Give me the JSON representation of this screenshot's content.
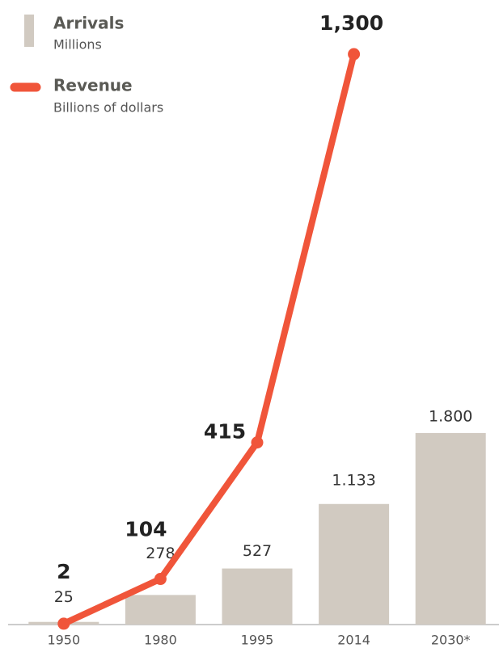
{
  "chart_data": {
    "type": "bar-line",
    "categories": [
      "1950",
      "1980",
      "1995",
      "2014",
      "2030*"
    ],
    "series": [
      {
        "name": "Arrivals",
        "unit": "Millions",
        "color": "#d1cac1",
        "type": "bar",
        "values": [
          25,
          278,
          527,
          1133,
          1800
        ],
        "value_labels": [
          "25",
          "278",
          "527",
          "1.133",
          "1.800"
        ]
      },
      {
        "name": "Revenue",
        "unit": "Billions of dollars",
        "color": "#f0553a",
        "type": "line",
        "axis": "y2",
        "values": [
          2,
          104,
          415,
          1300,
          null
        ],
        "value_labels": [
          "2",
          "104",
          "415",
          "1,300",
          null
        ]
      }
    ],
    "ylim": [
      0,
      5360
    ],
    "y2lim": [
      0,
      1300
    ]
  }
}
